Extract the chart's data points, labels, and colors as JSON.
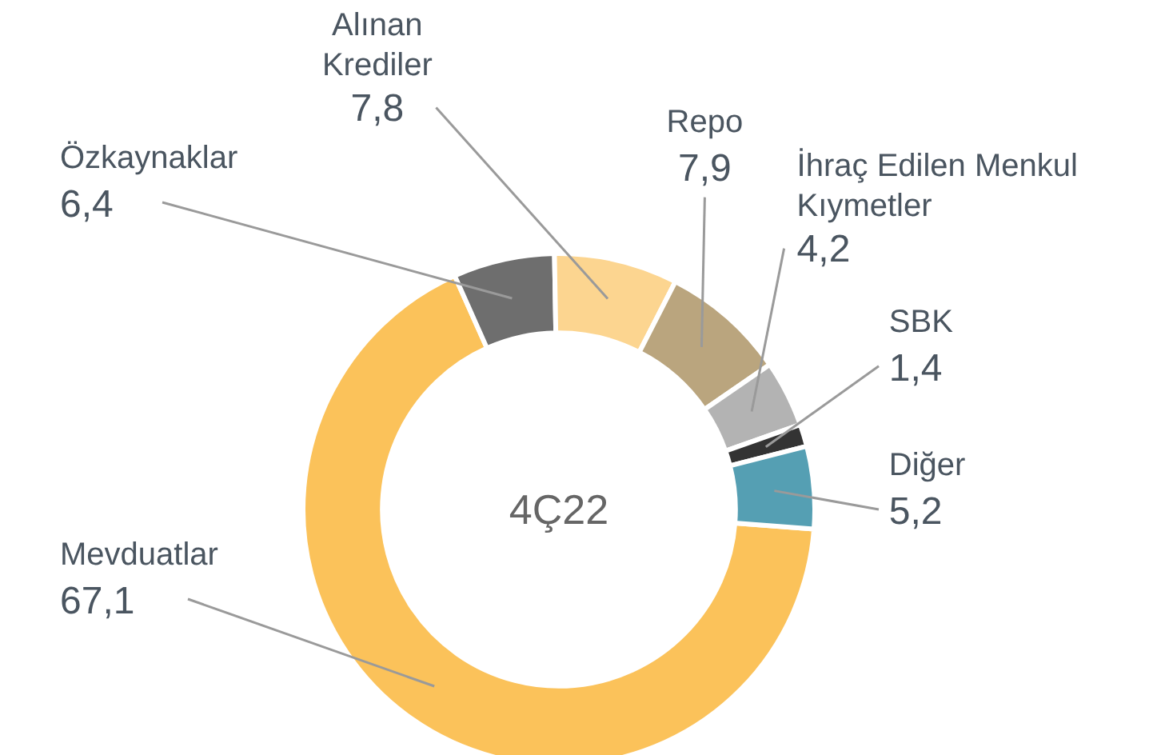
{
  "chart_data": {
    "type": "donut",
    "title": "4Ç22",
    "categories": [
      "Mevduatlar",
      "Özkaynaklar",
      "Alınan Krediler",
      "Repo",
      "İhraç Edilen Menkul Kıymetler",
      "SBK",
      "Diğer"
    ],
    "values": [
      67.1,
      6.4,
      7.8,
      7.9,
      4.2,
      1.4,
      5.2
    ],
    "value_labels": [
      "67,1",
      "6,4",
      "7,8",
      "7,9",
      "4,2",
      "1,4",
      "5,2"
    ],
    "colors": [
      "#fbc25a",
      "#6e6e6e",
      "#fcd590",
      "#baa57e",
      "#b3b3b3",
      "#333333",
      "#559fb3"
    ]
  }
}
